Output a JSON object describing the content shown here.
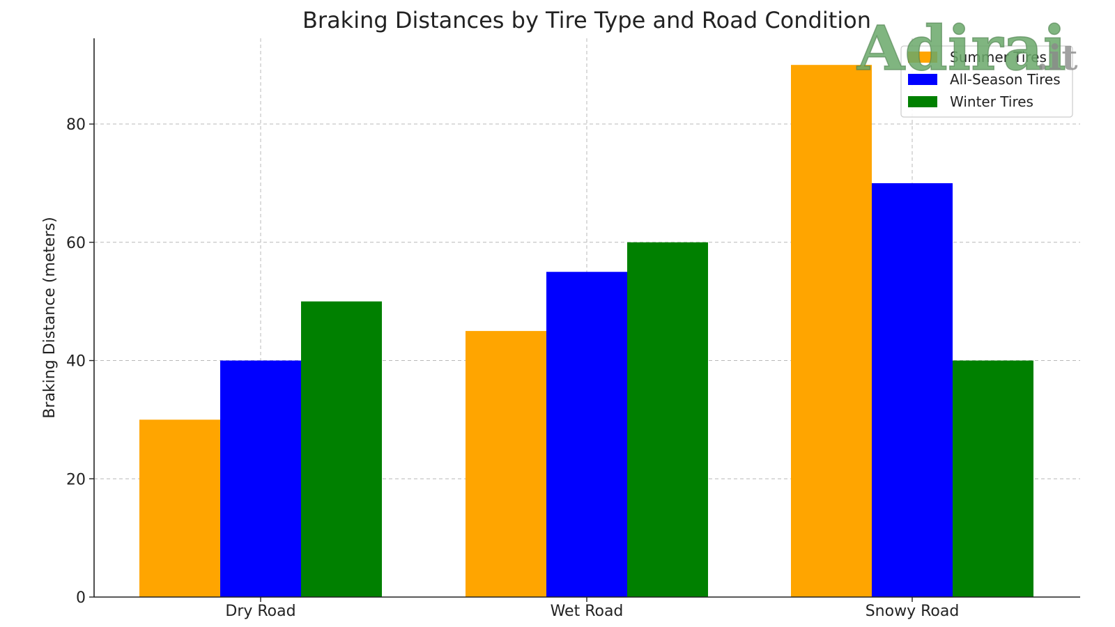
{
  "chart_data": {
    "type": "bar",
    "title": "Braking Distances by Tire Type and Road Condition",
    "xlabel": "",
    "ylabel": "Braking Distance (meters)",
    "categories": [
      "Dry Road",
      "Wet Road",
      "Snowy Road"
    ],
    "series": [
      {
        "name": "Summer Tires",
        "color": "#FFA500",
        "values": [
          30,
          45,
          90
        ]
      },
      {
        "name": "All-Season Tires",
        "color": "#0000FF",
        "values": [
          40,
          55,
          70
        ]
      },
      {
        "name": "Winter Tires",
        "color": "#008000",
        "values": [
          50,
          60,
          40
        ]
      }
    ],
    "ylim": [
      0,
      94.5
    ],
    "yticks": [
      0,
      20,
      40,
      60,
      80
    ],
    "grid": true,
    "legend_position": "top-right"
  },
  "watermark": {
    "main": "Adirai",
    "tld": ".it"
  }
}
